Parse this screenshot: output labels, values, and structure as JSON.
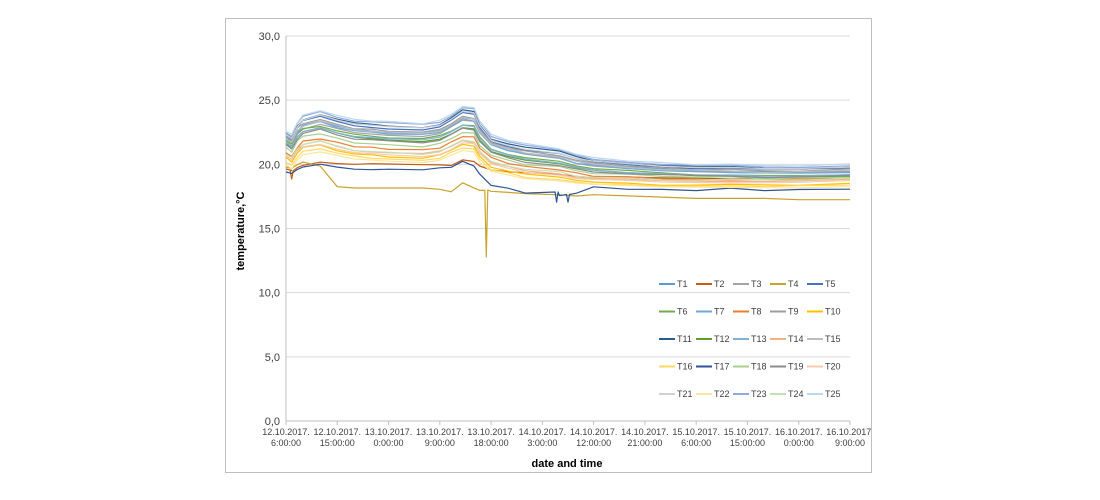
{
  "chart_data": {
    "type": "line",
    "title": "",
    "xlabel": "date and time",
    "ylabel": "temperature,°C",
    "ylim": [
      0,
      30
    ],
    "yticks": [
      "0,0",
      "5,0",
      "10,0",
      "15,0",
      "20,0",
      "25,0",
      "30,0"
    ],
    "xlim": [
      "2017-10-12 06:00",
      "2017-10-16 09:00"
    ],
    "x_tick_labels": [
      [
        "12.10.2017.",
        "6:00:00"
      ],
      [
        "12.10.2017.",
        "15:00:00"
      ],
      [
        "13.10.2017.",
        "0:00:00"
      ],
      [
        "13.10.2017.",
        "9:00:00"
      ],
      [
        "13.10.2017.",
        "18:00:00"
      ],
      [
        "14.10.2017.",
        "3:00:00"
      ],
      [
        "14.10.2017.",
        "12:00:00"
      ],
      [
        "14.10.2017.",
        "21:00:00"
      ],
      [
        "15.10.2017.",
        "6:00:00"
      ],
      [
        "15.10.2017.",
        "15:00:00"
      ],
      [
        "16.10.2017.",
        "0:00:00"
      ],
      [
        "16.10.2017.",
        "9:00:00"
      ]
    ],
    "grid": "horizontal",
    "legend_position": "bottom-right",
    "x": [
      "2017-10-12 06:00",
      "2017-10-12 07:00",
      "2017-10-12 08:00",
      "2017-10-12 09:00",
      "2017-10-12 12:00",
      "2017-10-12 15:00",
      "2017-10-12 18:00",
      "2017-10-12 21:00",
      "2017-10-13 00:00",
      "2017-10-13 06:00",
      "2017-10-13 09:00",
      "2017-10-13 11:00",
      "2017-10-13 13:00",
      "2017-10-13 15:00",
      "2017-10-13 16:00",
      "2017-10-13 18:00",
      "2017-10-13 21:00",
      "2017-10-14 00:00",
      "2017-10-14 06:00",
      "2017-10-14 09:00",
      "2017-10-14 12:00",
      "2017-10-14 18:00",
      "2017-10-15 00:00",
      "2017-10-15 06:00",
      "2017-10-15 12:00",
      "2017-10-15 18:00",
      "2017-10-16 00:00",
      "2017-10-16 09:00"
    ],
    "series": [
      {
        "name": "T1",
        "color": "#5b9bd5",
        "values": [
          22.1,
          21.8,
          22.6,
          23.0,
          23.4,
          23.0,
          22.7,
          22.6,
          22.5,
          22.4,
          22.6,
          23.1,
          23.6,
          23.5,
          22.6,
          21.6,
          21.2,
          20.9,
          20.6,
          20.2,
          20.0,
          19.8,
          19.6,
          19.5,
          19.5,
          19.4,
          19.4,
          19.5
        ]
      },
      {
        "name": "T2",
        "color": "#c55a11",
        "values": [
          19.6,
          19.5,
          19.7,
          19.9,
          20.2,
          20.1,
          20.0,
          20.0,
          20.0,
          20.0,
          20.0,
          19.9,
          20.3,
          20.2,
          19.9,
          19.6,
          19.4,
          19.3,
          19.2,
          19.1,
          19.0,
          19.0,
          18.9,
          18.9,
          18.9,
          18.9,
          18.9,
          18.9
        ]
      },
      {
        "name": "T3",
        "color": "#a5a5a5",
        "values": [
          21.8,
          21.4,
          22.3,
          22.7,
          23.1,
          22.8,
          22.5,
          22.4,
          22.3,
          22.2,
          22.4,
          22.9,
          23.4,
          23.3,
          22.4,
          21.5,
          21.1,
          20.8,
          20.5,
          20.1,
          19.9,
          19.7,
          19.5,
          19.4,
          19.4,
          19.3,
          19.3,
          19.4
        ]
      },
      {
        "name": "T4",
        "color": "#c9a227",
        "values": [
          19.8,
          19.7,
          20.0,
          20.2,
          19.9,
          18.3,
          18.2,
          18.2,
          18.2,
          18.2,
          18.1,
          17.9,
          18.6,
          18.2,
          18.0,
          17.9,
          17.8,
          17.7,
          17.6,
          17.5,
          17.6,
          17.5,
          17.4,
          17.3,
          17.3,
          17.3,
          17.2,
          17.2
        ]
      },
      {
        "name": "T5",
        "color": "#4472c4",
        "values": [
          22.3,
          22.0,
          22.9,
          23.4,
          23.7,
          23.3,
          23.0,
          22.9,
          22.8,
          22.7,
          22.9,
          23.4,
          24.0,
          23.9,
          22.9,
          21.8,
          21.4,
          21.1,
          20.8,
          20.4,
          20.2,
          20.0,
          19.8,
          19.7,
          19.7,
          19.6,
          19.6,
          19.7
        ]
      },
      {
        "name": "T6",
        "color": "#70ad47",
        "values": [
          21.9,
          21.6,
          22.4,
          22.8,
          23.0,
          22.6,
          22.3,
          22.2,
          22.1,
          22.0,
          22.2,
          22.6,
          23.1,
          23.0,
          22.1,
          21.2,
          20.8,
          20.5,
          20.2,
          19.9,
          19.7,
          19.5,
          19.3,
          19.2,
          19.2,
          19.1,
          19.1,
          19.2
        ]
      },
      {
        "name": "T7",
        "color": "#6fa8dc",
        "values": [
          22.0,
          21.7,
          22.5,
          23.0,
          23.3,
          22.9,
          22.6,
          22.5,
          22.4,
          22.3,
          22.5,
          23.0,
          23.5,
          23.4,
          22.5,
          21.5,
          21.1,
          20.8,
          20.5,
          20.1,
          19.9,
          19.7,
          19.5,
          19.4,
          19.4,
          19.3,
          19.3,
          19.4
        ]
      },
      {
        "name": "T8",
        "color": "#ed7d31",
        "values": [
          20.9,
          20.6,
          21.3,
          21.8,
          22.0,
          21.7,
          21.4,
          21.3,
          21.2,
          21.1,
          21.3,
          21.7,
          22.2,
          22.1,
          21.3,
          20.5,
          20.1,
          19.8,
          19.6,
          19.3,
          19.1,
          19.0,
          18.9,
          18.8,
          18.8,
          18.8,
          18.8,
          18.9
        ]
      },
      {
        "name": "T9",
        "color": "#9e9e9e",
        "values": [
          22.2,
          21.9,
          22.8,
          23.2,
          23.5,
          23.1,
          22.8,
          22.7,
          22.6,
          22.5,
          22.7,
          23.2,
          23.7,
          23.6,
          22.7,
          21.7,
          21.3,
          21.0,
          20.7,
          20.3,
          20.1,
          19.9,
          19.7,
          19.6,
          19.6,
          19.5,
          19.5,
          19.6
        ]
      },
      {
        "name": "T10",
        "color": "#ffc000",
        "values": [
          20.5,
          20.2,
          20.9,
          21.3,
          21.5,
          21.1,
          20.8,
          20.7,
          20.6,
          20.5,
          20.7,
          21.1,
          21.6,
          21.4,
          20.6,
          19.8,
          19.5,
          19.2,
          19.0,
          18.8,
          18.6,
          18.5,
          18.4,
          18.4,
          18.4,
          18.4,
          18.4,
          18.5
        ]
      },
      {
        "name": "T11",
        "color": "#255e91",
        "values": [
          22.4,
          22.1,
          23.0,
          23.5,
          23.9,
          23.5,
          23.2,
          23.1,
          23.0,
          22.9,
          23.1,
          23.6,
          24.2,
          24.1,
          23.1,
          22.0,
          21.6,
          21.3,
          21.0,
          20.6,
          20.3,
          20.1,
          19.9,
          19.8,
          19.8,
          19.7,
          19.7,
          19.8
        ]
      },
      {
        "name": "T12",
        "color": "#5aa02c",
        "values": [
          21.6,
          21.3,
          22.1,
          22.5,
          22.8,
          22.4,
          22.1,
          22.0,
          21.9,
          21.8,
          22.0,
          22.4,
          22.9,
          22.8,
          21.9,
          21.0,
          20.6,
          20.3,
          20.0,
          19.7,
          19.5,
          19.3,
          19.2,
          19.1,
          19.1,
          19.0,
          19.0,
          19.1
        ]
      },
      {
        "name": "T13",
        "color": "#7fb2d9",
        "values": [
          21.7,
          21.4,
          22.2,
          22.6,
          22.9,
          22.5,
          22.2,
          22.1,
          22.0,
          21.9,
          22.1,
          22.5,
          23.0,
          22.9,
          22.0,
          21.1,
          20.7,
          20.4,
          20.1,
          19.8,
          19.6,
          19.4,
          19.3,
          19.2,
          19.2,
          19.1,
          19.1,
          19.2
        ]
      },
      {
        "name": "T14",
        "color": "#f4b183",
        "values": [
          20.7,
          20.4,
          21.1,
          21.5,
          21.8,
          21.4,
          21.1,
          21.0,
          20.9,
          20.8,
          21.0,
          21.4,
          21.9,
          21.7,
          20.9,
          20.1,
          19.8,
          19.5,
          19.3,
          19.0,
          18.9,
          18.8,
          18.7,
          18.7,
          18.7,
          18.7,
          18.7,
          18.8
        ]
      },
      {
        "name": "T15",
        "color": "#bdbdbd",
        "values": [
          22.0,
          21.7,
          22.6,
          23.0,
          23.4,
          23.0,
          22.7,
          22.6,
          22.5,
          22.4,
          22.6,
          23.1,
          23.6,
          23.5,
          22.6,
          21.6,
          21.2,
          20.9,
          20.6,
          20.2,
          20.0,
          19.8,
          19.6,
          19.5,
          19.5,
          19.4,
          19.4,
          19.5
        ]
      },
      {
        "name": "T16",
        "color": "#ffd966",
        "values": [
          20.2,
          19.9,
          20.6,
          21.0,
          21.2,
          20.9,
          20.6,
          20.5,
          20.4,
          20.3,
          20.5,
          20.9,
          21.3,
          21.2,
          20.4,
          19.6,
          19.3,
          19.0,
          18.8,
          18.6,
          18.5,
          18.4,
          18.3,
          18.3,
          18.3,
          18.3,
          18.3,
          18.4
        ]
      },
      {
        "name": "T17",
        "color": "#2f5597",
        "values": [
          19.4,
          19.3,
          19.6,
          19.8,
          20.0,
          19.8,
          19.6,
          19.6,
          19.6,
          19.6,
          19.7,
          19.8,
          20.2,
          19.9,
          19.2,
          18.4,
          18.1,
          17.8,
          17.6,
          17.8,
          18.2,
          18.1,
          18.0,
          18.0,
          18.1,
          18.0,
          18.0,
          18.1
        ]
      },
      {
        "name": "T18",
        "color": "#a9d18e",
        "values": [
          21.3,
          21.0,
          21.8,
          22.2,
          22.4,
          22.0,
          21.7,
          21.6,
          21.5,
          21.4,
          21.6,
          22.0,
          22.5,
          22.4,
          21.5,
          20.7,
          20.3,
          20.0,
          19.8,
          19.5,
          19.3,
          19.2,
          19.1,
          19.0,
          19.0,
          18.9,
          18.9,
          19.0
        ]
      },
      {
        "name": "T19",
        "color": "#8c8c8c",
        "values": [
          21.5,
          21.2,
          22.0,
          22.4,
          22.7,
          22.3,
          22.0,
          21.9,
          21.8,
          21.7,
          21.9,
          22.3,
          22.8,
          22.7,
          21.8,
          20.9,
          20.5,
          20.2,
          19.9,
          19.6,
          19.4,
          19.3,
          19.2,
          19.1,
          19.1,
          19.0,
          19.0,
          19.1
        ]
      },
      {
        "name": "T20",
        "color": "#f8cbad",
        "values": [
          20.6,
          20.3,
          21.0,
          21.4,
          21.6,
          21.2,
          20.9,
          20.8,
          20.7,
          20.6,
          20.8,
          21.2,
          21.7,
          21.6,
          20.8,
          20.0,
          19.7,
          19.4,
          19.2,
          18.9,
          18.8,
          18.7,
          18.6,
          18.6,
          18.6,
          18.6,
          18.6,
          18.7
        ]
      },
      {
        "name": "T21",
        "color": "#d0d0d0",
        "values": [
          22.3,
          22.0,
          22.9,
          23.4,
          23.8,
          23.4,
          23.1,
          23.0,
          22.9,
          22.8,
          23.0,
          23.5,
          24.1,
          24.0,
          23.0,
          21.9,
          21.5,
          21.2,
          20.9,
          20.5,
          20.3,
          20.1,
          19.9,
          19.8,
          19.8,
          19.7,
          19.7,
          19.8
        ]
      },
      {
        "name": "T22",
        "color": "#ffe699",
        "values": [
          20.0,
          19.7,
          20.4,
          20.8,
          21.0,
          20.7,
          20.4,
          20.3,
          20.2,
          20.1,
          20.3,
          20.7,
          21.1,
          21.0,
          20.2,
          19.5,
          19.2,
          18.9,
          18.7,
          18.5,
          18.4,
          18.3,
          18.2,
          18.2,
          18.2,
          18.2,
          18.2,
          18.3
        ]
      },
      {
        "name": "T23",
        "color": "#8faadc",
        "values": [
          22.5,
          22.2,
          23.2,
          23.7,
          24.1,
          23.7,
          23.4,
          23.3,
          23.2,
          23.1,
          23.3,
          23.8,
          24.4,
          24.3,
          23.3,
          22.2,
          21.8,
          21.5,
          21.1,
          20.7,
          20.4,
          20.2,
          20.0,
          19.9,
          19.9,
          19.8,
          19.8,
          19.9
        ]
      },
      {
        "name": "T24",
        "color": "#c5e0b4",
        "values": [
          20.8,
          20.5,
          21.2,
          21.6,
          21.8,
          21.4,
          21.1,
          21.0,
          20.9,
          20.8,
          21.0,
          21.4,
          21.9,
          21.8,
          21.0,
          20.2,
          19.9,
          19.6,
          19.4,
          19.1,
          19.0,
          18.9,
          18.8,
          18.8,
          18.8,
          18.8,
          18.8,
          18.9
        ]
      },
      {
        "name": "T25",
        "color": "#bdd7ee",
        "values": [
          22.6,
          22.3,
          23.3,
          23.8,
          24.2,
          23.8,
          23.5,
          23.4,
          23.3,
          23.2,
          23.4,
          23.9,
          24.5,
          24.4,
          23.4,
          22.3,
          21.9,
          21.6,
          21.2,
          20.8,
          20.5,
          20.3,
          20.1,
          20.0,
          20.0,
          19.9,
          19.9,
          20.0
        ]
      }
    ],
    "events": [
      {
        "series": "T4",
        "x": "2017-10-13 17:10",
        "y": 12.8
      },
      {
        "series": "T2",
        "x": "2017-10-12 07:00",
        "y": 18.9
      },
      {
        "series": "T17",
        "x": "2017-10-14 05:30",
        "y": 17.1
      },
      {
        "series": "T17",
        "x": "2017-10-14 07:30",
        "y": 17.1
      }
    ]
  }
}
